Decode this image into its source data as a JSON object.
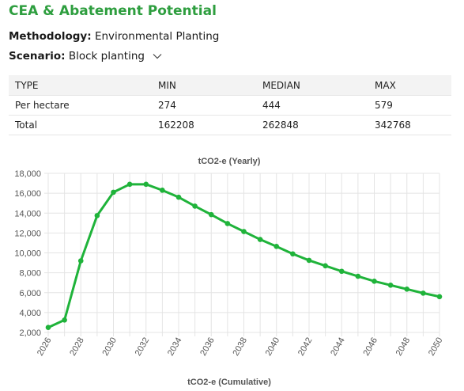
{
  "header": {
    "title": "CEA & Abatement Potential",
    "methodology_label": "Methodology:",
    "methodology_value": "Environmental Planting",
    "scenario_label": "Scenario:",
    "scenario_value": "Block planting",
    "scenario_icon": "chevron-down-icon"
  },
  "table": {
    "headers": [
      "TYPE",
      "MIN",
      "MEDIAN",
      "MAX"
    ],
    "rows": [
      [
        "Per hectare",
        "274",
        "444",
        "579"
      ],
      [
        "Total",
        "162208",
        "262848",
        "342768"
      ]
    ]
  },
  "colors": {
    "accent": "#2e9e3f",
    "line": "#1fb33a"
  },
  "chart_data": {
    "type": "line",
    "title": "tCO2-e (Yearly)",
    "footer_label": "tCO2-e (Cumulative)",
    "xlabel": "",
    "ylabel": "",
    "ylim": [
      2000,
      18000
    ],
    "yticks": [
      2000,
      4000,
      6000,
      8000,
      10000,
      12000,
      14000,
      16000,
      18000
    ],
    "ytick_labels": [
      "2,000",
      "4,000",
      "6,000",
      "8,000",
      "10,000",
      "12,000",
      "14,000",
      "16,000",
      "18,000"
    ],
    "xticks": [
      "2026",
      "2028",
      "2030",
      "2032",
      "2034",
      "2036",
      "2038",
      "2040",
      "2042",
      "2044",
      "2046",
      "2048",
      "2050"
    ],
    "grid": true,
    "series": [
      {
        "x": [
          2026,
          2027,
          2028,
          2029,
          2030,
          2031,
          2032,
          2033,
          2034,
          2035,
          2036,
          2037,
          2038,
          2039,
          2040,
          2041,
          2042,
          2043,
          2044,
          2045,
          2046,
          2047,
          2048,
          2049,
          2050
        ],
        "values": [
          2500,
          3250,
          9200,
          13750,
          16100,
          16900,
          16900,
          16300,
          15600,
          14700,
          13850,
          12950,
          12150,
          11350,
          10650,
          9900,
          9250,
          8700,
          8150,
          7650,
          7150,
          6750,
          6350,
          5950,
          5600
        ]
      }
    ]
  }
}
